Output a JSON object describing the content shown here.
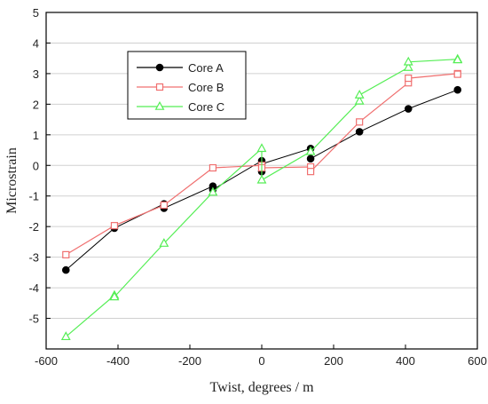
{
  "chart_data": {
    "type": "line",
    "xlabel": "Twist, degrees / m",
    "ylabel": "Microstrain",
    "xlim": [
      -600,
      600
    ],
    "ylim": [
      -6,
      5
    ],
    "x_ticks": [
      -600,
      -400,
      -200,
      0,
      200,
      400,
      600
    ],
    "y_ticks": [
      -5,
      -4,
      -3,
      -2,
      -1,
      0,
      1,
      2,
      3,
      4,
      5
    ],
    "grid": "horizontal",
    "legend_position": "upper-left",
    "series": [
      {
        "name": "Core A",
        "color": "#000000",
        "marker": "filled-circle",
        "points": [
          [
            -545,
            -3.42
          ],
          [
            -410,
            -2.05
          ],
          [
            -272,
            -1.26
          ],
          [
            -272,
            -1.4
          ],
          [
            -136,
            -0.68
          ],
          [
            -136,
            -0.79
          ],
          [
            0,
            0.15
          ],
          [
            0,
            -0.2
          ],
          [
            0,
            0.05
          ],
          [
            136,
            0.55
          ],
          [
            136,
            0.22
          ],
          [
            272,
            1.1
          ],
          [
            408,
            1.85
          ],
          [
            545,
            2.47
          ]
        ]
      },
      {
        "name": "Core B",
        "color": "#f07070",
        "marker": "open-square",
        "points": [
          [
            -545,
            -2.92
          ],
          [
            -410,
            -1.97
          ],
          [
            -272,
            -1.3
          ],
          [
            -136,
            -0.08
          ],
          [
            0,
            0.0
          ],
          [
            0,
            -0.08
          ],
          [
            136,
            -0.05
          ],
          [
            136,
            -0.2
          ],
          [
            272,
            1.42
          ],
          [
            408,
            2.7
          ],
          [
            408,
            2.85
          ],
          [
            545,
            3.0
          ],
          [
            545,
            2.98
          ]
        ]
      },
      {
        "name": "Core C",
        "color": "#55ee55",
        "marker": "open-triangle",
        "points": [
          [
            -545,
            -5.6
          ],
          [
            -410,
            -4.25
          ],
          [
            -410,
            -4.3
          ],
          [
            -272,
            -2.55
          ],
          [
            -136,
            -0.88
          ],
          [
            0,
            0.55
          ],
          [
            0,
            -0.48
          ],
          [
            136,
            0.45
          ],
          [
            272,
            2.1
          ],
          [
            272,
            2.3
          ],
          [
            408,
            3.2
          ],
          [
            408,
            3.38
          ],
          [
            545,
            3.47
          ],
          [
            545,
            3.45
          ]
        ]
      }
    ]
  }
}
